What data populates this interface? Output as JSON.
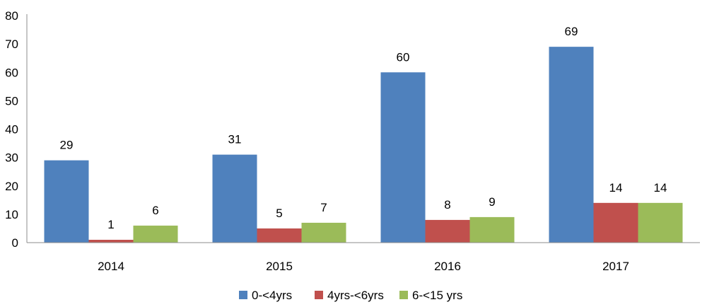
{
  "chart_data": {
    "type": "bar",
    "categories": [
      "2014",
      "2015",
      "2016",
      "2017"
    ],
    "series": [
      {
        "name": "0-<4yrs",
        "values": [
          29,
          31,
          60,
          69
        ],
        "color": "#4f81bd"
      },
      {
        "name": "4yrs-<6yrs",
        "values": [
          1,
          5,
          8,
          14
        ],
        "color": "#c0504d"
      },
      {
        "name": "6-<15 yrs",
        "values": [
          6,
          7,
          9,
          14
        ],
        "color": "#9bbb59"
      }
    ],
    "yticks": [
      "0",
      "10",
      "20",
      "30",
      "40",
      "50",
      "60",
      "70",
      "80"
    ],
    "ylim": [
      0,
      80
    ],
    "grid": false,
    "data_labels": true,
    "legend": "bottom-center",
    "axis_color": "#8c8c8c"
  }
}
